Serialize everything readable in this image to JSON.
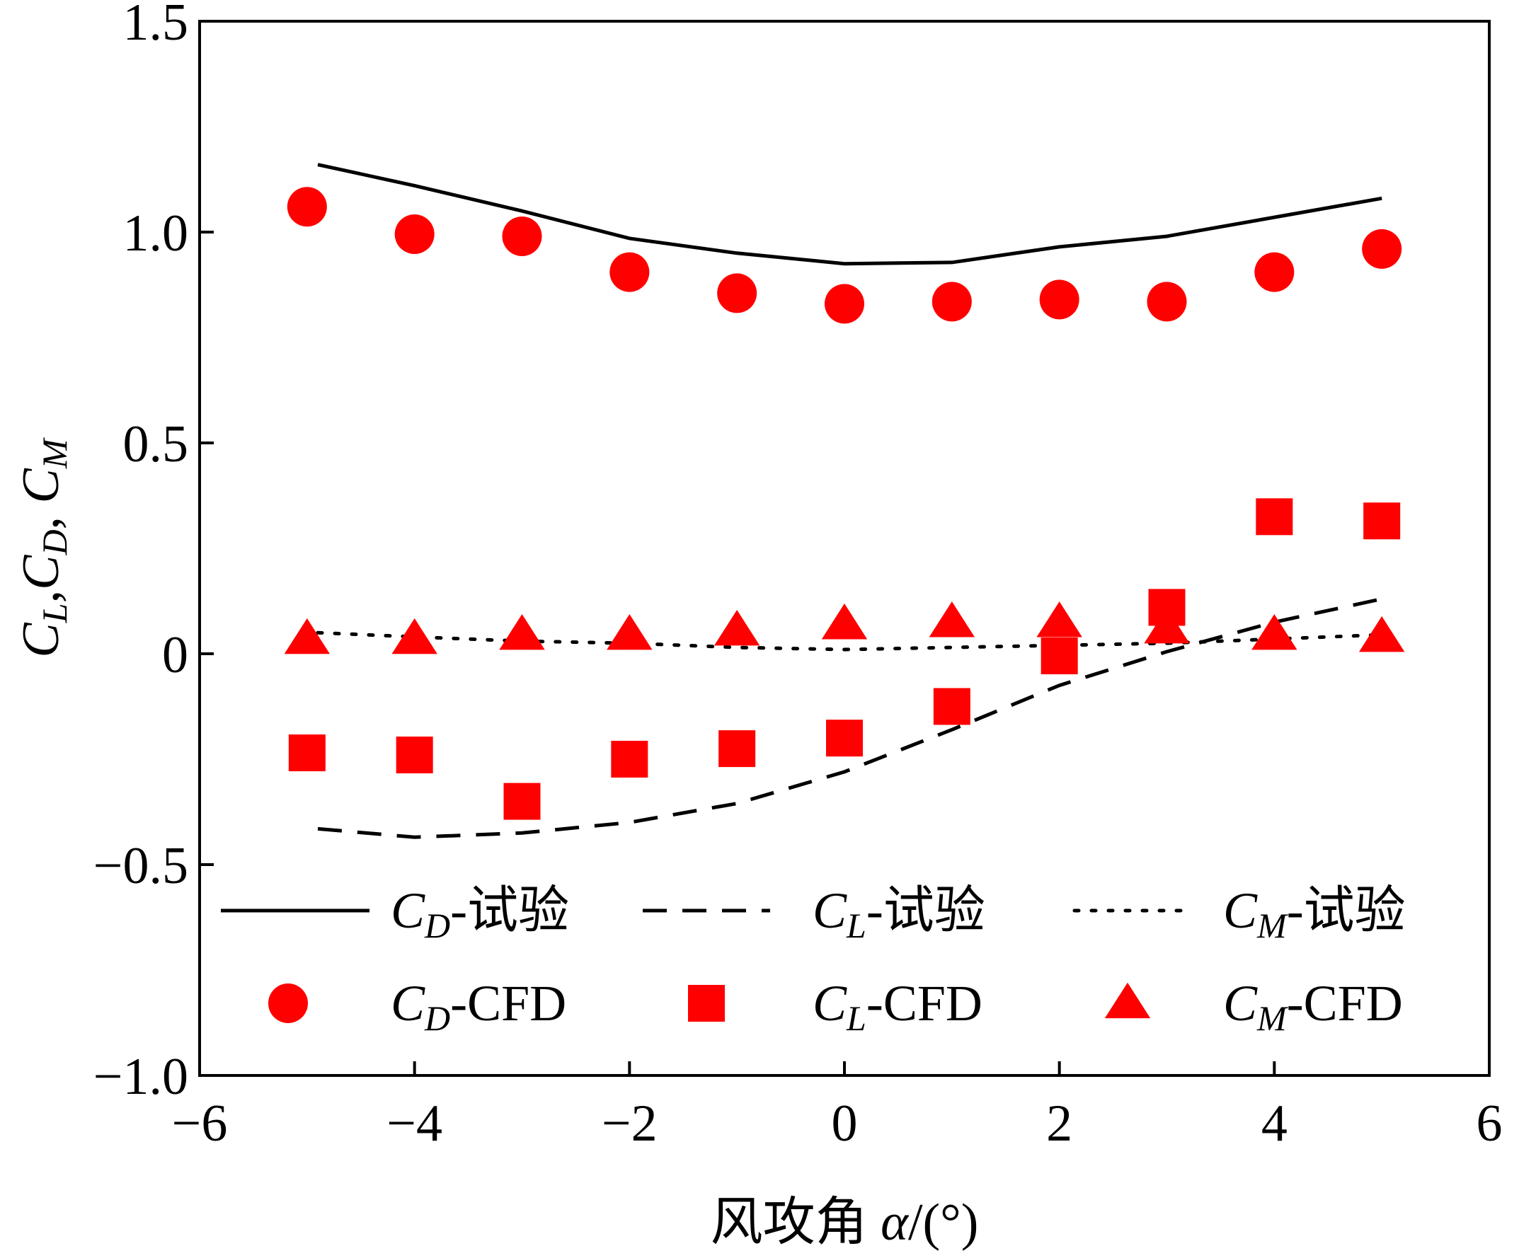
{
  "chart_data": {
    "type": "line",
    "title": "",
    "xlabel": {
      "prefix": "风攻角 ",
      "symbol": "α",
      "suffix": "/(°)"
    },
    "ylabel": {
      "parts": [
        [
          "C",
          "L"
        ],
        [
          "C",
          "D"
        ],
        [
          "C",
          "M"
        ]
      ],
      "separators": [
        ",",
        ", "
      ]
    },
    "xlim": [
      -6,
      6
    ],
    "ylim": [
      -1.0,
      1.5
    ],
    "xticks": [
      -6,
      -4,
      -2,
      0,
      2,
      4,
      6
    ],
    "xtick_labels": [
      "−6",
      "−4",
      "−2",
      "0",
      "2",
      "4",
      "6"
    ],
    "yticks": [
      -1.0,
      -0.5,
      0,
      0.5,
      1.0,
      1.5
    ],
    "ytick_labels": [
      "−1.0",
      "−0.5",
      "0",
      "0.5",
      "1.0",
      "1.5"
    ],
    "grid": false,
    "legend_position": "lower-center",
    "series": [
      {
        "name": "CD-试验",
        "label_main": "C",
        "label_sub": "D",
        "label_suffix": "-试验",
        "kind": "line",
        "style": "solid",
        "color": "#000000",
        "x": [
          -4.9,
          -4,
          -3,
          -2,
          -1,
          0,
          1,
          2,
          3,
          4,
          5
        ],
        "y": [
          1.16,
          1.11,
          1.05,
          0.985,
          0.95,
          0.925,
          0.928,
          0.965,
          0.99,
          1.035,
          1.08
        ]
      },
      {
        "name": "CL-试验",
        "label_main": "C",
        "label_sub": "L",
        "label_suffix": "-试验",
        "kind": "line",
        "style": "dashed",
        "color": "#000000",
        "x": [
          -4.9,
          -4,
          -3,
          -2,
          -1,
          0,
          1,
          2,
          3,
          4,
          5
        ],
        "y": [
          -0.415,
          -0.435,
          -0.425,
          -0.4,
          -0.355,
          -0.28,
          -0.18,
          -0.075,
          0.005,
          0.075,
          0.13
        ]
      },
      {
        "name": "CM-试验",
        "label_main": "C",
        "label_sub": "M",
        "label_suffix": "-试验",
        "kind": "line",
        "style": "dotted",
        "color": "#000000",
        "x": [
          -4.9,
          -4,
          -3,
          -2,
          -1,
          0,
          1,
          2,
          3,
          4,
          5
        ],
        "y": [
          0.05,
          0.04,
          0.03,
          0.025,
          0.015,
          0.01,
          0.015,
          0.02,
          0.025,
          0.035,
          0.045
        ]
      },
      {
        "name": "CD-CFD",
        "label_main": "C",
        "label_sub": "D",
        "label_suffix": "-CFD",
        "kind": "marker",
        "marker": "circle",
        "color": "#ff0000",
        "x": [
          -5,
          -4,
          -3,
          -2,
          -1,
          0,
          1,
          2,
          3,
          4,
          5
        ],
        "y": [
          1.06,
          0.995,
          0.99,
          0.905,
          0.855,
          0.83,
          0.835,
          0.84,
          0.835,
          0.905,
          0.96
        ]
      },
      {
        "name": "CL-CFD",
        "label_main": "C",
        "label_sub": "L",
        "label_suffix": "-CFD",
        "kind": "marker",
        "marker": "square",
        "color": "#ff0000",
        "x": [
          -5,
          -4,
          -3,
          -2,
          -1,
          0,
          1,
          2,
          3,
          4,
          5
        ],
        "y": [
          -0.235,
          -0.24,
          -0.35,
          -0.25,
          -0.225,
          -0.2,
          -0.125,
          -0.005,
          0.11,
          0.325,
          0.315
        ]
      },
      {
        "name": "CM-CFD",
        "label_main": "C",
        "label_sub": "M",
        "label_suffix": "-CFD",
        "kind": "marker",
        "marker": "triangle",
        "color": "#ff0000",
        "x": [
          -5,
          -4,
          -3,
          -2,
          -1,
          0,
          1,
          2,
          3,
          4,
          5
        ],
        "y": [
          0.035,
          0.035,
          0.045,
          0.045,
          0.055,
          0.07,
          0.075,
          0.075,
          0.06,
          0.045,
          0.04
        ]
      }
    ]
  }
}
